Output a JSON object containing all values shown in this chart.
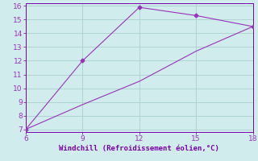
{
  "x": [
    6,
    9,
    12,
    15,
    18
  ],
  "y_line1": [
    7,
    12,
    15.9,
    15.3,
    14.5
  ],
  "y_line2": [
    7,
    8.8,
    10.5,
    12.7,
    14.5
  ],
  "line_color": "#9933bb",
  "marker": "D",
  "marker_size": 2.5,
  "background_color": "#d0ecec",
  "grid_color": "#b0d4d4",
  "xlabel": "Windchill (Refroidissement éolien,°C)",
  "xlabel_color": "#7700aa",
  "tick_color": "#9933bb",
  "spine_color": "#7700aa",
  "xlim": [
    6,
    18
  ],
  "ylim": [
    6.8,
    16.2
  ],
  "xticks": [
    6,
    9,
    12,
    15,
    18
  ],
  "yticks": [
    7,
    8,
    9,
    10,
    11,
    12,
    13,
    14,
    15,
    16
  ]
}
